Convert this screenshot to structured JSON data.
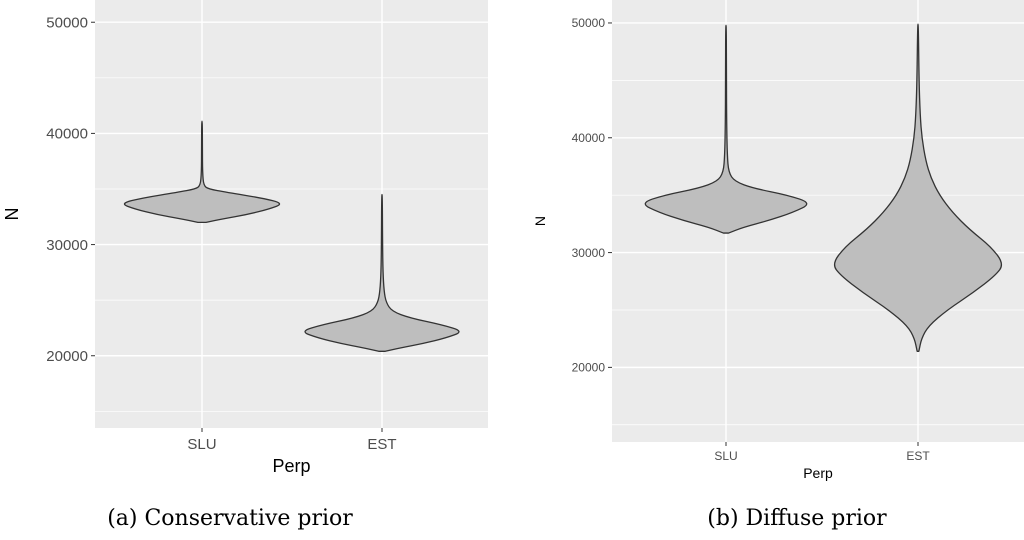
{
  "chart_data": [
    {
      "type": "violin",
      "caption": "(a) Conservative prior",
      "xlabel": "Perp",
      "ylabel": "N",
      "categories": [
        "SLU",
        "EST"
      ],
      "ylim": [
        13500,
        52000
      ],
      "yticks": [
        "20000",
        "30000",
        "40000",
        "50000"
      ],
      "grid": true,
      "legend": "none",
      "fill_color": "#bebebe",
      "panel_color": "#ebebeb",
      "violins": [
        {
          "category": "SLU",
          "profile": [
            [
              32000,
              0.05
            ],
            [
              32300,
              0.25
            ],
            [
              32700,
              0.55
            ],
            [
              33200,
              0.82
            ],
            [
              33700,
              1.0
            ],
            [
              34200,
              0.72
            ],
            [
              34700,
              0.3
            ],
            [
              35000,
              0.08
            ],
            [
              35300,
              0.02
            ],
            [
              36500,
              0.007
            ],
            [
              38500,
              0.005
            ],
            [
              41100,
              0.004
            ]
          ]
        },
        {
          "category": "EST",
          "profile": [
            [
              20400,
              0.04
            ],
            [
              20700,
              0.22
            ],
            [
              21100,
              0.5
            ],
            [
              21600,
              0.78
            ],
            [
              22200,
              1.0
            ],
            [
              22800,
              0.72
            ],
            [
              23400,
              0.34
            ],
            [
              24000,
              0.12
            ],
            [
              24800,
              0.05
            ],
            [
              25800,
              0.025
            ],
            [
              27500,
              0.012
            ],
            [
              30000,
              0.007
            ],
            [
              34500,
              0.004
            ]
          ]
        }
      ]
    },
    {
      "type": "violin",
      "caption": "(b) Diffuse prior",
      "xlabel": "Perp",
      "ylabel": "N",
      "categories": [
        "SLU",
        "EST"
      ],
      "ylim": [
        13500,
        52000
      ],
      "yticks": [
        "20000",
        "30000",
        "40000",
        "50000"
      ],
      "grid": true,
      "legend": "none",
      "fill_color": "#bebebe",
      "panel_color": "#ebebeb",
      "violins": [
        {
          "category": "SLU",
          "profile": [
            [
              31700,
              0.03
            ],
            [
              32200,
              0.2
            ],
            [
              32800,
              0.5
            ],
            [
              33500,
              0.78
            ],
            [
              34300,
              1.0
            ],
            [
              35000,
              0.72
            ],
            [
              35600,
              0.32
            ],
            [
              36200,
              0.1
            ],
            [
              37000,
              0.03
            ],
            [
              38500,
              0.015
            ],
            [
              41000,
              0.008
            ],
            [
              45000,
              0.005
            ],
            [
              49800,
              0.004
            ]
          ]
        },
        {
          "category": "EST",
          "profile": [
            [
              21400,
              0.01
            ],
            [
              22500,
              0.04
            ],
            [
              23600,
              0.12
            ],
            [
              25000,
              0.34
            ],
            [
              26500,
              0.64
            ],
            [
              28000,
              0.9
            ],
            [
              29000,
              1.0
            ],
            [
              30500,
              0.85
            ],
            [
              32000,
              0.6
            ],
            [
              33500,
              0.4
            ],
            [
              35000,
              0.25
            ],
            [
              36500,
              0.15
            ],
            [
              38000,
              0.09
            ],
            [
              40000,
              0.045
            ],
            [
              42000,
              0.025
            ],
            [
              45000,
              0.012
            ],
            [
              49900,
              0.004
            ]
          ]
        }
      ]
    }
  ]
}
